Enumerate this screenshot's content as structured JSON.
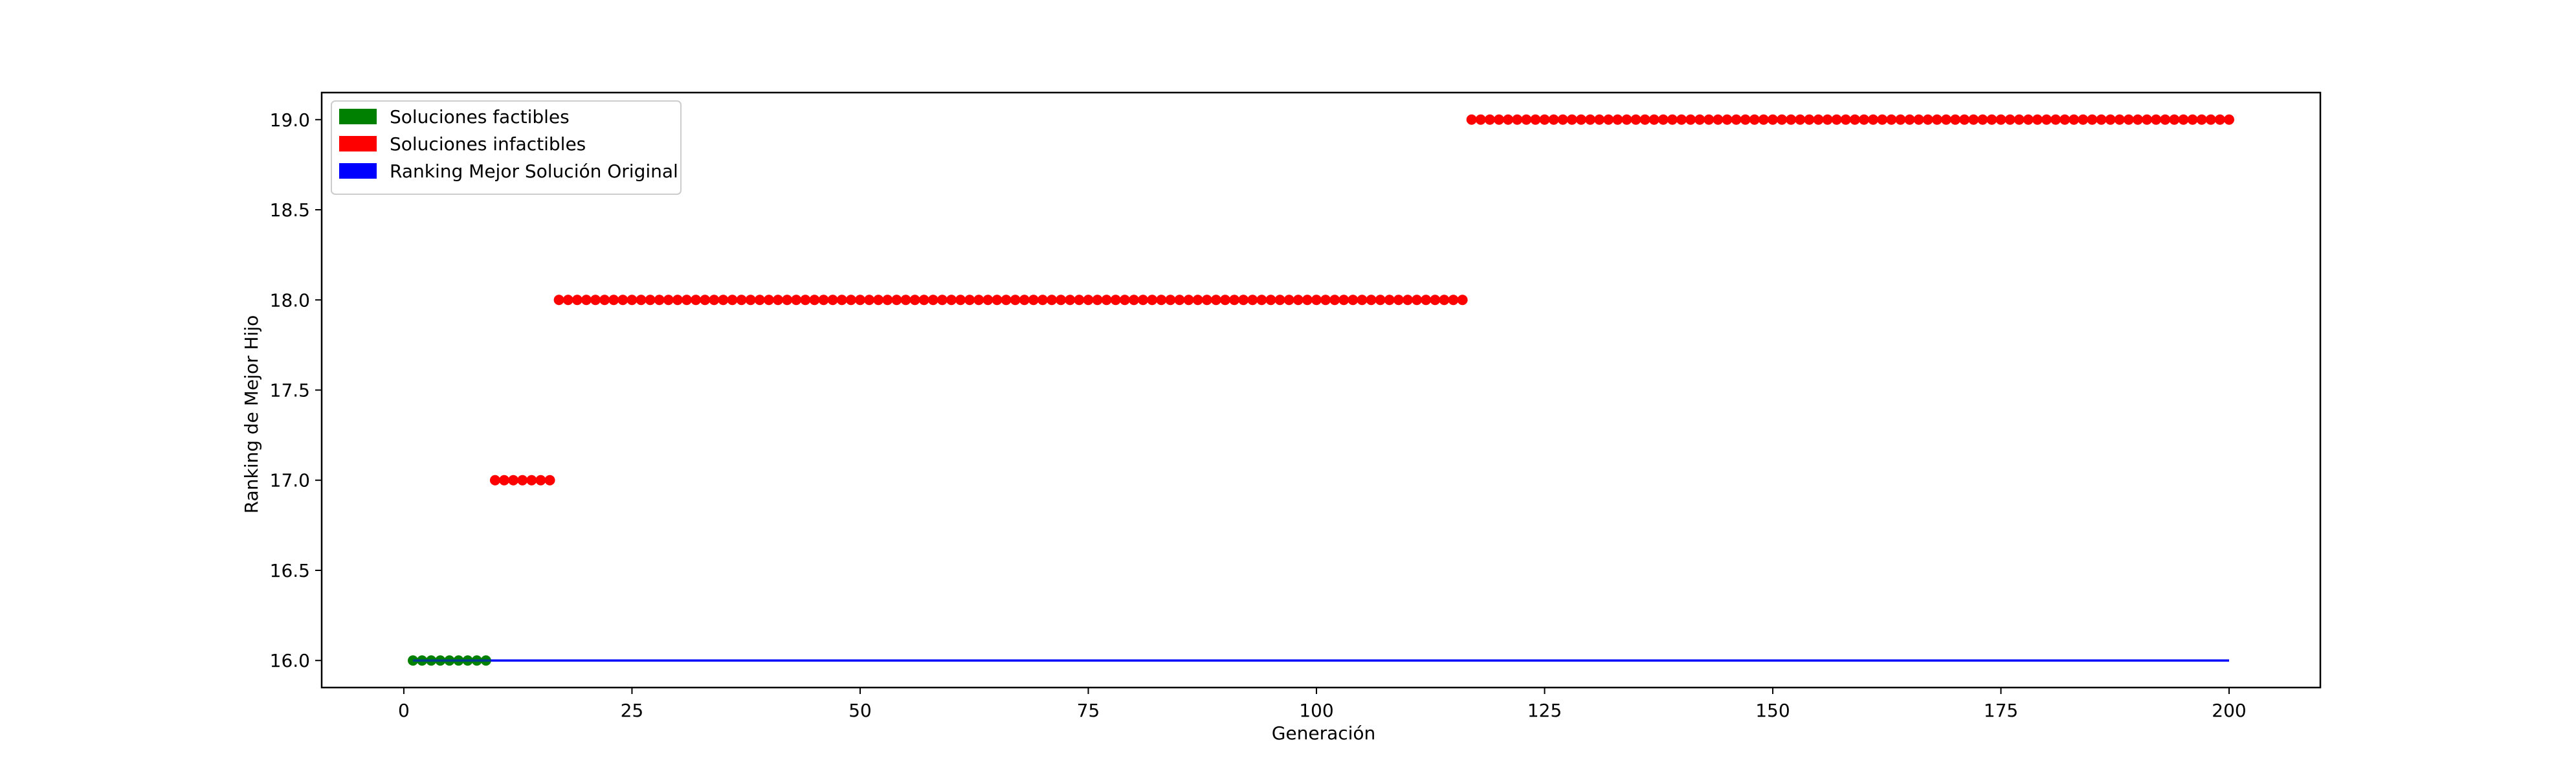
{
  "chart_data": {
    "type": "scatter",
    "xlabel": "Generación",
    "ylabel": "Ranking de Mejor Hijo",
    "xlim": [
      -9,
      210
    ],
    "ylim": [
      15.85,
      19.15
    ],
    "xticks": [
      0,
      25,
      50,
      75,
      100,
      125,
      150,
      175,
      200
    ],
    "yticks": [
      16.0,
      16.5,
      17.0,
      17.5,
      18.0,
      18.5,
      19.0
    ],
    "xtick_labels": [
      "0",
      "25",
      "50",
      "75",
      "100",
      "125",
      "150",
      "175",
      "200"
    ],
    "ytick_labels": [
      "16.0",
      "16.5",
      "17.0",
      "17.5",
      "18.0",
      "18.5",
      "19.0"
    ],
    "grid": false,
    "legend_position": "upper-left",
    "legend": [
      {
        "label": "Soluciones factibles",
        "color": "#008000"
      },
      {
        "label": "Soluciones infactibles",
        "color": "#ff0000"
      },
      {
        "label": "Ranking Mejor Solución Original",
        "color": "#0000ff"
      }
    ],
    "series": [
      {
        "name": "Soluciones factibles",
        "color": "#008000",
        "marker": "circle",
        "segments": [
          {
            "x_start": 1,
            "x_end": 9,
            "y": 16.0
          }
        ]
      },
      {
        "name": "Soluciones infactibles",
        "color": "#ff0000",
        "marker": "circle",
        "segments": [
          {
            "x_start": 10,
            "x_end": 16,
            "y": 17.0
          },
          {
            "x_start": 17,
            "x_end": 116,
            "y": 18.0
          },
          {
            "x_start": 117,
            "x_end": 200,
            "y": 19.0
          }
        ]
      },
      {
        "name": "Ranking Mejor Solución Original",
        "color": "#0000ff",
        "marker": "line",
        "x_start": 1,
        "x_end": 200,
        "y": 16.0
      }
    ]
  }
}
